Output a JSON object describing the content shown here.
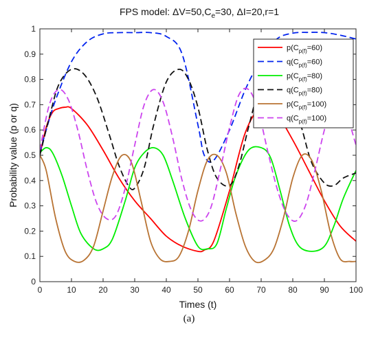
{
  "caption": "(a)",
  "chart_data": {
    "type": "line",
    "title": "FPS model: ΔV=50,Ce=30, ΔI=20,r=1",
    "title_parts": {
      "prefix": "FPS model: ΔV=50,C",
      "sub": "e",
      "suffix": "=30, ΔI=20,r=1"
    },
    "xlabel": "Times (t)",
    "ylabel": "Probability value (p or q)",
    "xlim": [
      0,
      100
    ],
    "ylim": [
      0,
      1
    ],
    "xticks": [
      "0",
      "10",
      "20",
      "30",
      "40",
      "50",
      "60",
      "70",
      "80",
      "90",
      "100"
    ],
    "yticks": [
      "0",
      "0.1",
      "0.2",
      "0.3",
      "0.4",
      "0.5",
      "0.6",
      "0.7",
      "0.8",
      "0.9",
      "1"
    ],
    "grid": false,
    "legend_position": "top-right",
    "series": [
      {
        "name": "p(Cp(f)=60)",
        "label_main": "p(C",
        "label_sub": "p(f)",
        "label_tail": "=60)",
        "color": "#ff0000",
        "dash": "solid",
        "x": [
          0,
          2,
          4,
          6,
          8,
          10,
          15,
          20,
          25,
          30,
          35,
          40,
          45,
          50,
          52,
          55,
          60,
          65,
          70,
          75,
          80,
          85,
          90,
          95,
          100
        ],
        "y": [
          0.5,
          0.61,
          0.67,
          0.685,
          0.69,
          0.685,
          0.62,
          0.52,
          0.41,
          0.32,
          0.25,
          0.18,
          0.14,
          0.12,
          0.125,
          0.16,
          0.36,
          0.59,
          0.69,
          0.66,
          0.56,
          0.44,
          0.32,
          0.22,
          0.16
        ]
      },
      {
        "name": "q(Cp(f)=60)",
        "label_main": "q(C",
        "label_sub": "p(f)",
        "label_tail": "=60)",
        "color": "#0022ee",
        "dash": "dashed",
        "x": [
          0,
          2,
          5,
          10,
          15,
          20,
          25,
          30,
          35,
          40,
          45,
          50,
          52,
          55,
          60,
          65,
          70,
          75,
          80,
          85,
          90,
          95,
          100
        ],
        "y": [
          0.51,
          0.6,
          0.72,
          0.87,
          0.95,
          0.98,
          0.985,
          0.985,
          0.985,
          0.97,
          0.9,
          0.62,
          0.5,
          0.48,
          0.6,
          0.76,
          0.88,
          0.96,
          0.983,
          0.986,
          0.985,
          0.975,
          0.96
        ]
      },
      {
        "name": "p(Cp(f)=80)",
        "label_main": "p(C",
        "label_sub": "p(f)",
        "label_tail": "=80)",
        "color": "#00ee00",
        "dash": "solid",
        "x": [
          0,
          2,
          4,
          7,
          10,
          13,
          17,
          20,
          23,
          27,
          30,
          33,
          36,
          39,
          42,
          46,
          50,
          53,
          56,
          59,
          62,
          66,
          70,
          73,
          76,
          79,
          82,
          86,
          90,
          93,
          96,
          100
        ],
        "y": [
          0.51,
          0.53,
          0.51,
          0.42,
          0.3,
          0.19,
          0.13,
          0.13,
          0.17,
          0.32,
          0.45,
          0.51,
          0.53,
          0.5,
          0.4,
          0.25,
          0.14,
          0.13,
          0.15,
          0.29,
          0.42,
          0.52,
          0.53,
          0.49,
          0.36,
          0.22,
          0.14,
          0.12,
          0.14,
          0.22,
          0.33,
          0.44
        ]
      },
      {
        "name": "q(Cp(f)=80)",
        "label_main": "q(C",
        "label_sub": "p(f)",
        "label_tail": "=80)",
        "color": "#111111",
        "dash": "dashed",
        "x": [
          0,
          3,
          6,
          10,
          14,
          18,
          22,
          25,
          28,
          30,
          33,
          36,
          40,
          44,
          47,
          50,
          53,
          56,
          60,
          63,
          66,
          70,
          74,
          77,
          80,
          83,
          86,
          90,
          93,
          96,
          100
        ],
        "y": [
          0.5,
          0.65,
          0.78,
          0.84,
          0.82,
          0.73,
          0.58,
          0.46,
          0.38,
          0.37,
          0.45,
          0.62,
          0.79,
          0.84,
          0.8,
          0.69,
          0.52,
          0.41,
          0.38,
          0.46,
          0.61,
          0.79,
          0.84,
          0.82,
          0.73,
          0.6,
          0.47,
          0.39,
          0.38,
          0.41,
          0.43
        ]
      },
      {
        "name": "p(Cp(f)=100)",
        "label_main": "p(C",
        "label_sub": "p(f)",
        "label_tail": "=100)",
        "color": "#b87333",
        "dash": "solid",
        "x": [
          0,
          2,
          5,
          8,
          11,
          14,
          17,
          20,
          23,
          26,
          29,
          32,
          35,
          38,
          41,
          44,
          47,
          50,
          53,
          56,
          59,
          62,
          65,
          68,
          71,
          74,
          77,
          80,
          83,
          86,
          89,
          92,
          95,
          98,
          100
        ],
        "y": [
          0.5,
          0.44,
          0.25,
          0.12,
          0.08,
          0.085,
          0.14,
          0.28,
          0.42,
          0.5,
          0.47,
          0.32,
          0.16,
          0.09,
          0.08,
          0.1,
          0.2,
          0.36,
          0.48,
          0.5,
          0.43,
          0.27,
          0.14,
          0.08,
          0.085,
          0.13,
          0.25,
          0.41,
          0.5,
          0.48,
          0.36,
          0.19,
          0.09,
          0.08,
          0.08
        ]
      },
      {
        "name": "q(Cp(f)=100)",
        "label_main": "q(C",
        "label_sub": "p(f)",
        "label_tail": "=100)",
        "color": "#cc44ee",
        "dash": "dashed",
        "x": [
          0,
          3,
          6,
          9,
          12,
          15,
          18,
          21,
          24,
          27,
          30,
          33,
          36,
          39,
          42,
          45,
          48,
          51,
          54,
          57,
          60,
          63,
          66,
          69,
          72,
          75,
          78,
          81,
          84,
          87,
          90,
          93,
          96,
          100
        ],
        "y": [
          0.52,
          0.7,
          0.76,
          0.72,
          0.6,
          0.44,
          0.31,
          0.25,
          0.26,
          0.37,
          0.54,
          0.7,
          0.76,
          0.71,
          0.57,
          0.4,
          0.28,
          0.24,
          0.29,
          0.44,
          0.61,
          0.74,
          0.76,
          0.68,
          0.52,
          0.37,
          0.27,
          0.24,
          0.3,
          0.44,
          0.6,
          0.72,
          0.7,
          0.54
        ]
      }
    ]
  }
}
